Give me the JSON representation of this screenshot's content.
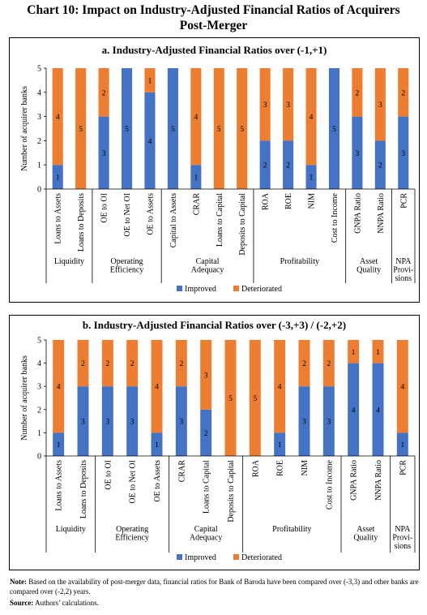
{
  "page": {
    "title_line1": "Chart 10: Impact on Industry-Adjusted Financial Ratios of Acquirers",
    "title_line2": "Post-Merger"
  },
  "footnote": {
    "note_label": "Note:",
    "note_text": "Based on the availability of post-merger data, financial ratios for Bank of Baroda have been compared over (-3,3) and other banks are compared over (-2,2) years.",
    "source_label": "Source:",
    "source_text": "Authors’ calculations."
  },
  "colors": {
    "improved": "#4472C4",
    "deteriorated": "#ED7D31"
  },
  "chart_data": [
    {
      "type": "bar",
      "stacked": true,
      "title": "a. Industry-Adjusted Financial Ratios over (-1,+1)",
      "ylabel": "Number of acquirer banks",
      "ylim": [
        0,
        5
      ],
      "yticks": [
        0,
        1,
        2,
        3,
        4,
        5
      ],
      "categories": [
        "Loans to Assets",
        "Loans to Deposits",
        "OE to OI",
        "OE to Net OI",
        "OE to Assets",
        "Capital to Assets",
        "CRAR",
        "Loans to Capital",
        "Deposits to Capital",
        "ROA",
        "ROE",
        "NIM",
        "Cost to Income",
        "GNPA Ratio",
        "NNPA Ratio",
        "PCR"
      ],
      "groups": [
        {
          "label": [
            "Liquidity"
          ],
          "count": 2
        },
        {
          "label": [
            "Operating",
            "Efficiency"
          ],
          "count": 3
        },
        {
          "label": [
            "Capital",
            "Adequacy"
          ],
          "count": 4
        },
        {
          "label": [
            "Profitability"
          ],
          "count": 4
        },
        {
          "label": [
            "Asset",
            "Quality"
          ],
          "count": 2
        },
        {
          "label": [
            "NPA",
            "Provi-",
            "sions"
          ],
          "count": 1
        }
      ],
      "series": [
        {
          "name": "Improved",
          "values": [
            1,
            0,
            3,
            5,
            4,
            5,
            1,
            0,
            0,
            2,
            2,
            1,
            5,
            3,
            2,
            3
          ]
        },
        {
          "name": "Deteriorated",
          "values": [
            4,
            5,
            2,
            0,
            1,
            0,
            4,
            5,
            5,
            3,
            3,
            4,
            0,
            2,
            3,
            2
          ]
        }
      ],
      "legend": "bottom",
      "grid": false
    },
    {
      "type": "bar",
      "stacked": true,
      "title": "b. Industry-Adjusted Financial Ratios over (-3,+3) / (-2,+2)",
      "ylabel": "Number of acquirer banks",
      "ylim": [
        0,
        5
      ],
      "yticks": [
        0,
        1,
        2,
        3,
        4,
        5
      ],
      "categories": [
        "Loans to Assets",
        "Loans to Deposits",
        "OE to OI",
        "OE to Net OI",
        "OE to Assets",
        "CRAR",
        "Loans to Capital",
        "Deposits to Capital",
        "ROA",
        "ROE",
        "NIM",
        "Cost to Income",
        "GNPA Ratio",
        "NNPA Ratio",
        "PCR"
      ],
      "groups": [
        {
          "label": [
            "Liquidity"
          ],
          "count": 2
        },
        {
          "label": [
            "Operating",
            "Efficiency"
          ],
          "count": 3
        },
        {
          "label": [
            "Capital",
            "Adequacy"
          ],
          "count": 3
        },
        {
          "label": [
            "Profitability"
          ],
          "count": 4
        },
        {
          "label": [
            "Asset",
            "Quality"
          ],
          "count": 2
        },
        {
          "label": [
            "NPA",
            "Provi-",
            "sions"
          ],
          "count": 1
        }
      ],
      "series": [
        {
          "name": "Improved",
          "values": [
            1,
            3,
            3,
            3,
            1,
            3,
            2,
            0,
            0,
            1,
            3,
            3,
            4,
            4,
            1
          ]
        },
        {
          "name": "Deteriorated",
          "values": [
            4,
            2,
            2,
            2,
            4,
            2,
            3,
            5,
            5,
            4,
            2,
            2,
            1,
            1,
            4
          ]
        }
      ],
      "legend": "bottom",
      "grid": false
    }
  ]
}
